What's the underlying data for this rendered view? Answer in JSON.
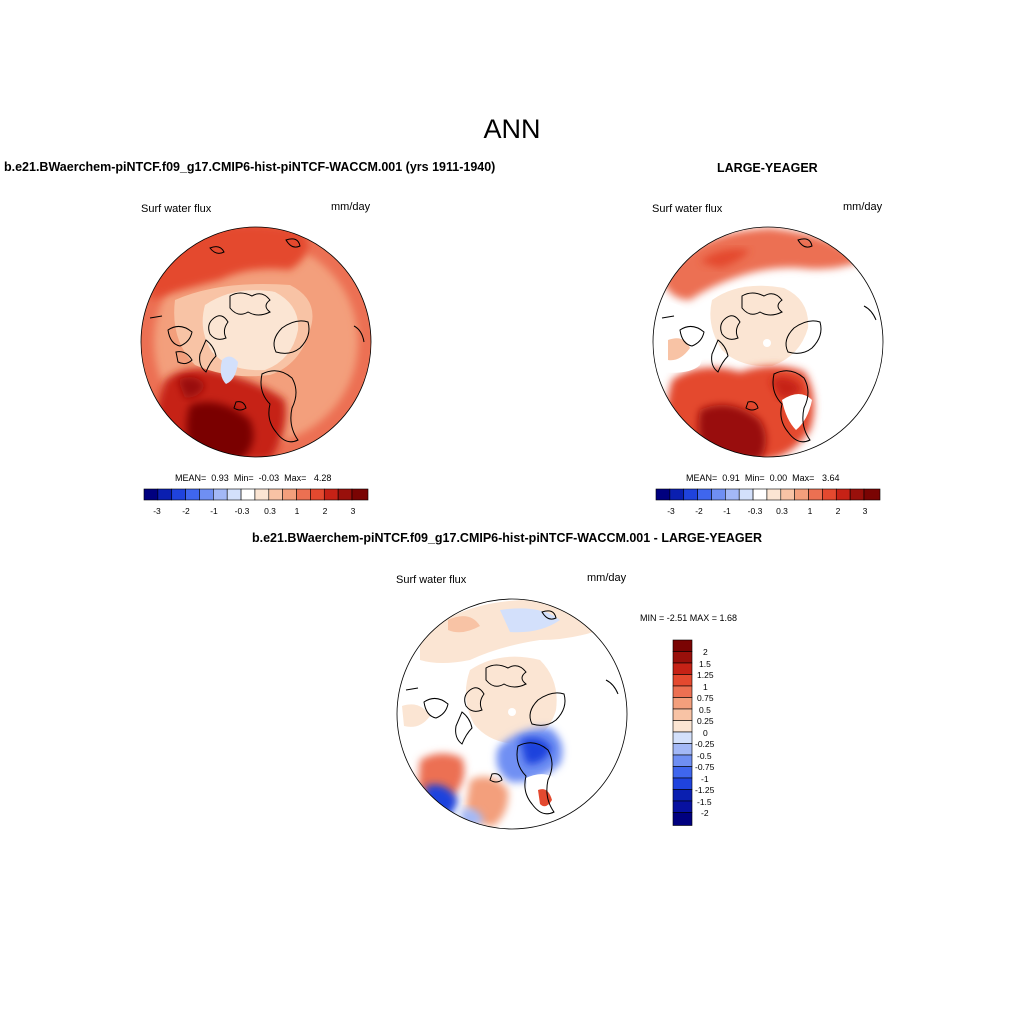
{
  "title": "ANN",
  "colors": {
    "ocean_scale": [
      "#00007f",
      "#0a1fb0",
      "#1f43dd",
      "#3f66ee",
      "#6f8ff3",
      "#a3b8f6",
      "#d3e0fb",
      "#fbe5d3",
      "#f8c3a5",
      "#f39f7c",
      "#ec7052",
      "#e4492f",
      "#c62216",
      "#99100b",
      "#7a0403"
    ],
    "coast": "#000000"
  },
  "panels": [
    {
      "id": "test",
      "case_title": "b.e21.BWaerchem-piNTCF.f09_g17.CMIP6-hist-piNTCF-WACCM.001 (yrs 1911-1940)",
      "variable": "Surf water flux",
      "units": "mm/day",
      "mean_label": "MEAN=",
      "mean": "0.93",
      "min_label": "Min=",
      "min": "-0.03",
      "max_label": "Max=",
      "max": "4.28",
      "colorbar_labels": [
        "-3",
        "-2",
        "-1",
        "-0.3",
        "0.3",
        "1",
        "2",
        "3"
      ]
    },
    {
      "id": "obs",
      "case_title": "LARGE-YEAGER",
      "variable": "Surf water flux",
      "units": "mm/day",
      "mean_label": "MEAN=",
      "mean": "0.91",
      "min_label": "Min=",
      "min": "0.00",
      "max_label": "Max=",
      "max": "3.64",
      "colorbar_labels": [
        "-3",
        "-2",
        "-1",
        "-0.3",
        "0.3",
        "1",
        "2",
        "3"
      ]
    },
    {
      "id": "diff",
      "case_title": "b.e21.BWaerchem-piNTCF.f09_g17.CMIP6-hist-piNTCF-WACCM.001 - LARGE-YEAGER",
      "variable": "Surf water flux",
      "units": "mm/day",
      "minmax_text": "MIN =  -2.51 MAX =   1.68",
      "colorbar_labels": [
        "2",
        "1.5",
        "1.25",
        "1",
        "0.75",
        "0.5",
        "0.25",
        "0",
        "-0.25",
        "-0.5",
        "-0.75",
        "-1",
        "-1.25",
        "-1.5",
        "-2"
      ]
    }
  ]
}
